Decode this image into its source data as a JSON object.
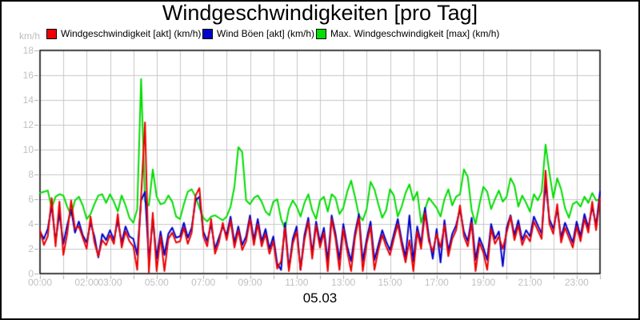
{
  "title": "Windgeschwindigkeiten [pro Tag]",
  "date_label": "05.03",
  "y_axis": {
    "unit": "km/h",
    "min": 0,
    "max": 18,
    "tick_step": 2,
    "ticks": [
      0,
      2,
      4,
      6,
      8,
      10,
      12,
      14,
      16,
      18
    ]
  },
  "x_axis": {
    "start_hour": 0,
    "end_hour": 24,
    "grid_step_hours": 1,
    "tick_labels": [
      {
        "hour": 0,
        "text": "00:00"
      },
      {
        "hour": 2,
        "text": "02:00"
      },
      {
        "hour": 3,
        "text": "03:00"
      },
      {
        "hour": 5,
        "text": "05:00"
      },
      {
        "hour": 7,
        "text": "07:00"
      },
      {
        "hour": 9,
        "text": "09:00"
      },
      {
        "hour": 11,
        "text": "11:00"
      },
      {
        "hour": 13,
        "text": "13:00"
      },
      {
        "hour": 15,
        "text": "15:00"
      },
      {
        "hour": 17,
        "text": "17:00"
      },
      {
        "hour": 19,
        "text": "19:00"
      },
      {
        "hour": 21,
        "text": "21:00"
      },
      {
        "hour": 23,
        "text": "23:00"
      }
    ]
  },
  "legend": {
    "items": [
      {
        "label": "Windgeschwindigkeit [akt] (km/h)",
        "color": "#ee0000"
      },
      {
        "label": "Wind Böen [akt] (km/h)",
        "color": "#0000cc"
      },
      {
        "label": "Max. Windgeschwindigkeit [max] (km/h)",
        "color": "#00dd00"
      }
    ]
  },
  "colors": {
    "background": "#ffffff",
    "grid": "#c8c8c8",
    "axis_border": "#000000",
    "tick": "#b0b0b0",
    "tick_label": "#c0c0c0",
    "title": "#000000",
    "date_label": "#000000"
  },
  "chart_data": {
    "type": "line",
    "title": "Windgeschwindigkeiten [pro Tag]",
    "xlabel": "05.03",
    "ylabel": "km/h",
    "ylim": [
      0,
      18
    ],
    "xlim_hours": [
      0,
      24
    ],
    "grid": true,
    "legend_position": "top",
    "sample_interval_minutes": 10,
    "series": [
      {
        "name": "Windgeschwindigkeit [akt] (km/h)",
        "color": "#ee0000",
        "values": [
          3.5,
          2.3,
          3.0,
          6.1,
          2.2,
          5.8,
          1.5,
          3.2,
          5.9,
          3.6,
          3.8,
          2.9,
          2.0,
          4.6,
          2.5,
          1.4,
          2.7,
          2.3,
          3.1,
          2.4,
          4.8,
          2.1,
          3.4,
          2.6,
          2.2,
          0.3,
          6.2,
          12.2,
          0.1,
          4.9,
          0.2,
          3.0,
          0.2,
          2.8,
          3.3,
          2.5,
          2.6,
          3.7,
          2.4,
          3.3,
          6.3,
          6.9,
          3.0,
          2.2,
          4.4,
          1.6,
          2.5,
          4.1,
          2.7,
          4.3,
          2.1,
          3.5,
          1.9,
          2.6,
          4.4,
          2.3,
          4.0,
          2.2,
          3.2,
          1.6,
          2.6,
          0.4,
          1.0,
          3.7,
          0.2,
          2.4,
          3.4,
          0.3,
          2.7,
          4.2,
          1.2,
          3.9,
          2.1,
          3.3,
          0.2,
          4.4,
          2.8,
          0.3,
          3.6,
          1.8,
          0.2,
          2.9,
          4.5,
          0.2,
          2.4,
          3.8,
          0.3,
          1.9,
          3.1,
          2.2,
          1.5,
          2.8,
          4.0,
          2.3,
          0.9,
          2.7,
          0.2,
          3.4,
          2.0,
          4.9,
          2.6,
          1.8,
          3.2,
          2.1,
          3.9,
          1.4,
          2.8,
          3.5,
          5.5,
          3.0,
          2.2,
          4.1,
          0.2,
          2.5,
          1.7,
          0.3,
          3.6,
          2.4,
          3.0,
          2.0,
          3.3,
          4.6,
          2.7,
          3.9,
          2.3,
          3.1,
          2.6,
          4.2,
          3.5,
          2.8,
          8.3,
          4.0,
          3.2,
          5.6,
          2.5,
          3.7,
          2.9,
          2.1,
          3.8,
          2.6,
          4.4,
          3.3,
          5.8,
          3.5,
          6.1
        ]
      },
      {
        "name": "Wind Böen [akt] (km/h)",
        "color": "#0000cc",
        "values": [
          3.4,
          2.8,
          3.6,
          5.5,
          2.6,
          4.9,
          2.4,
          3.9,
          5.2,
          3.3,
          4.2,
          3.1,
          2.5,
          4.1,
          3.0,
          1.3,
          3.2,
          2.7,
          3.5,
          2.7,
          4.3,
          2.5,
          3.8,
          3.0,
          2.8,
          1.5,
          5.9,
          6.6,
          1.0,
          4.5,
          1.2,
          3.4,
          1.5,
          3.2,
          3.7,
          2.9,
          3.0,
          4.1,
          2.9,
          3.7,
          5.9,
          6.2,
          3.4,
          2.6,
          4.0,
          2.0,
          2.9,
          3.8,
          3.1,
          4.6,
          2.5,
          3.8,
          2.3,
          3.0,
          4.7,
          2.7,
          4.4,
          2.6,
          3.6,
          2.0,
          3.0,
          0.8,
          0.3,
          4.1,
          0.4,
          2.8,
          3.8,
          0.3,
          3.1,
          4.5,
          1.6,
          4.2,
          2.5,
          3.7,
          1.0,
          4.7,
          3.2,
          1.1,
          4.0,
          2.2,
          1.0,
          3.3,
          4.8,
          1.0,
          2.8,
          4.2,
          1.1,
          2.3,
          3.5,
          2.6,
          1.9,
          3.2,
          4.4,
          2.7,
          1.3,
          4.7,
          1.0,
          3.8,
          2.4,
          5.3,
          3.0,
          1.2,
          3.6,
          0.9,
          4.3,
          1.8,
          3.2,
          3.9,
          5.2,
          3.4,
          2.6,
          4.5,
          1.1,
          2.9,
          2.1,
          1.1,
          4.0,
          2.8,
          3.4,
          0.6,
          3.7,
          4.7,
          3.1,
          4.3,
          2.7,
          3.5,
          3.0,
          4.6,
          3.9,
          3.2,
          7.3,
          4.4,
          3.6,
          5.2,
          2.9,
          4.1,
          3.3,
          2.5,
          4.2,
          3.0,
          4.8,
          3.7,
          5.4,
          3.9,
          6.6
        ]
      },
      {
        "name": "Max. Windgeschwindigkeit [max] (km/h)",
        "color": "#00dd00",
        "values": [
          6.5,
          6.6,
          6.7,
          5.3,
          6.2,
          6.4,
          6.3,
          5.4,
          4.7,
          5.9,
          6.2,
          5.5,
          4.4,
          4.8,
          5.6,
          6.3,
          6.4,
          5.7,
          6.4,
          5.8,
          5.0,
          6.3,
          5.5,
          4.5,
          4.1,
          5.2,
          15.7,
          5.8,
          5.5,
          8.4,
          6.2,
          5.6,
          5.7,
          6.3,
          5.8,
          4.6,
          4.4,
          5.6,
          6.6,
          6.8,
          6.2,
          5.3,
          4.5,
          4.2,
          4.6,
          4.7,
          4.5,
          4.3,
          4.6,
          5.4,
          7.0,
          10.2,
          9.8,
          5.9,
          5.6,
          6.1,
          6.3,
          5.8,
          5.0,
          4.7,
          5.8,
          6.0,
          4.4,
          3.6,
          5.2,
          5.9,
          5.4,
          4.6,
          5.7,
          6.4,
          5.1,
          4.4,
          5.9,
          6.2,
          5.0,
          6.4,
          6.1,
          4.8,
          5.3,
          6.6,
          7.5,
          6.2,
          4.7,
          4.3,
          5.2,
          7.4,
          6.8,
          5.6,
          4.5,
          5.1,
          6.8,
          6.3,
          4.6,
          5.4,
          6.5,
          7.2,
          5.9,
          6.6,
          4.1,
          5.2,
          6.1,
          5.7,
          5.3,
          4.6,
          6.0,
          6.8,
          5.5,
          6.2,
          6.4,
          8.4,
          7.8,
          5.1,
          4.0,
          5.6,
          7.0,
          6.6,
          5.2,
          6.0,
          6.7,
          5.8,
          6.2,
          7.7,
          7.1,
          5.4,
          6.3,
          5.7,
          5.0,
          6.4,
          5.9,
          6.6,
          10.4,
          8.1,
          6.1,
          7.7,
          6.8,
          5.3,
          4.5,
          5.6,
          5.8,
          5.4,
          6.2,
          5.7,
          6.5,
          5.9,
          6.0
        ]
      }
    ]
  }
}
